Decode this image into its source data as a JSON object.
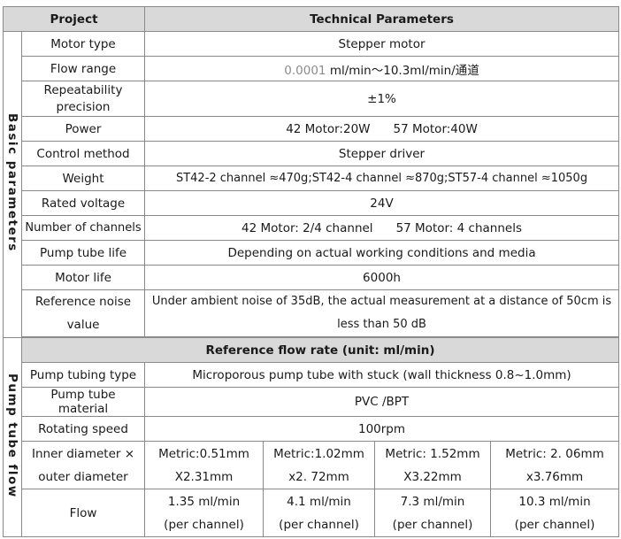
{
  "header": {
    "project": "Project",
    "technical": "Technical Parameters"
  },
  "basic": {
    "group_label": "Basic parameters",
    "motor_type": {
      "label": "Motor type",
      "value": "Stepper motor"
    },
    "flow_range": {
      "label": "Flow range",
      "value_prefix": "0.0001",
      "value_rest": " ml/min～10.3ml/min/通道"
    },
    "repeatability": {
      "label_1": "Repeatability",
      "label_2": "precision",
      "value": "±1%"
    },
    "power": {
      "label": "Power",
      "value_a": "42 Motor:20W",
      "value_b": "57 Motor:40W"
    },
    "control": {
      "label": "Control method",
      "value": "Stepper driver"
    },
    "weight": {
      "label": "Weight",
      "value": "ST42-2 channel ≈470g;ST42-4 channel ≈870g;ST57-4 channel ≈1050g"
    },
    "voltage": {
      "label": "Rated voltage",
      "value": "24V"
    },
    "channels": {
      "label": "Number of channels",
      "value_a": "42 Motor: 2/4 channel",
      "value_b": "57 Motor: 4 channels"
    },
    "tube_life": {
      "label": "Pump tube life",
      "value": "Depending on actual working conditions and media"
    },
    "motor_life": {
      "label": "Motor life",
      "value": "6000h"
    },
    "noise": {
      "label_1": "Reference noise",
      "label_2": "value",
      "value_1": "Under ambient noise of 35dB, the actual measurement at a distance of 50cm is",
      "value_2": "less than 50 dB"
    }
  },
  "flow": {
    "group_label": "Pump tube flow",
    "section_title": "Reference flow rate (unit: ml/min)",
    "tubing_type": {
      "label": "Pump tubing type",
      "value": "Microporous pump tube with stuck (wall thickness 0.8~1.0mm)"
    },
    "material": {
      "label": "Pump tube material",
      "value": "PVC /BPT"
    },
    "speed": {
      "label": "Rotating speed",
      "value": "100rpm"
    },
    "diameter": {
      "label_1": "Inner diameter ×",
      "label_2": "outer diameter",
      "cols": [
        {
          "line1": "Metric:0.51mm",
          "line2": "X2.31mm"
        },
        {
          "line1": "Metric:1.02mm",
          "line2": "x2. 72mm"
        },
        {
          "line1": "Metric: 1.52mm",
          "line2": "X3.22mm"
        },
        {
          "line1": "Metric: 2. 06mm",
          "line2": "x3.76mm"
        }
      ]
    },
    "flow_row": {
      "label": "Flow",
      "cols": [
        {
          "line1": "1.35 ml/min",
          "line2": "(per channel)"
        },
        {
          "line1": "4.1 ml/min",
          "line2": "(per channel)"
        },
        {
          "line1": "7.3 ml/min",
          "line2": "(per channel)"
        },
        {
          "line1": "10.3 ml/min",
          "line2": "(per channel)"
        }
      ]
    }
  }
}
